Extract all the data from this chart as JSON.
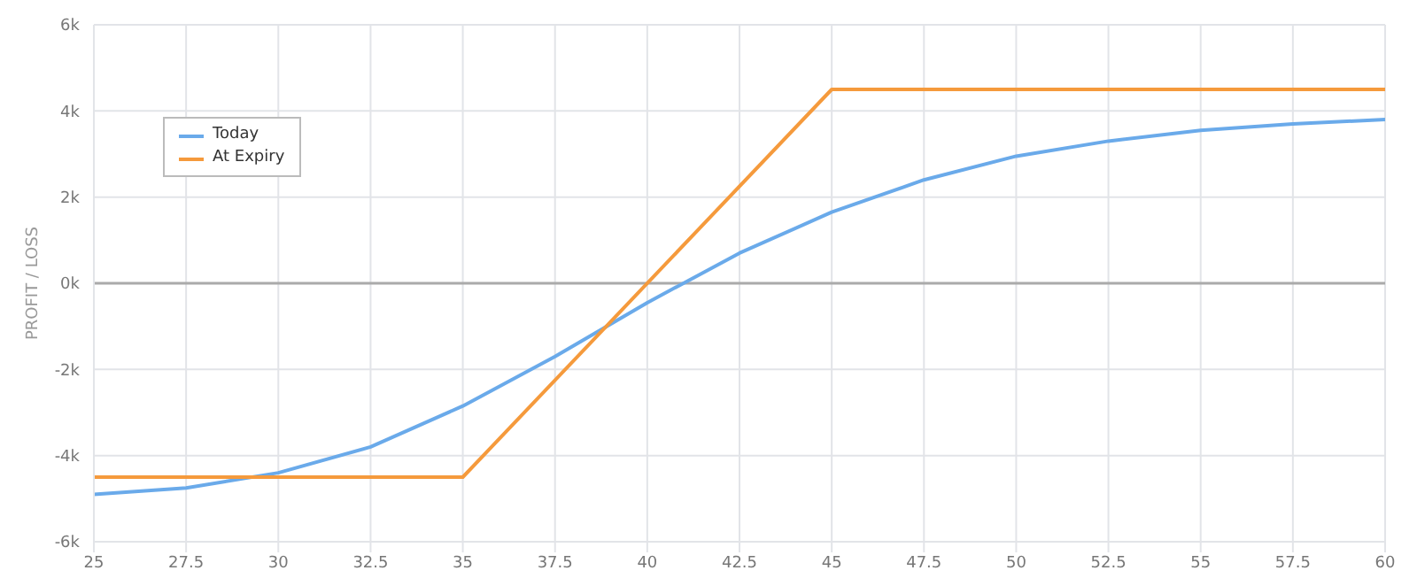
{
  "chart_data": {
    "type": "line",
    "ylabel": "PROFIT / LOSS",
    "xlim": [
      25,
      60
    ],
    "xticks": [
      25,
      27.5,
      30,
      32.5,
      35,
      37.5,
      40,
      42.5,
      45,
      47.5,
      50,
      52.5,
      55,
      57.5,
      60
    ],
    "ylim": [
      -6000,
      6000
    ],
    "yticks": [
      {
        "value": -6000,
        "label": "-6k"
      },
      {
        "value": -4000,
        "label": "-4k"
      },
      {
        "value": -2000,
        "label": "-2k"
      },
      {
        "value": 0,
        "label": "0k"
      },
      {
        "value": 2000,
        "label": "2k"
      },
      {
        "value": 4000,
        "label": "4k"
      },
      {
        "value": 6000,
        "label": "6k"
      }
    ],
    "grid": true,
    "legend": "top left",
    "marker": "none",
    "line_style": "solid",
    "ref_lines": [
      {
        "axis": "y",
        "value": 0,
        "color": "#aaaaaa"
      }
    ],
    "series": [
      {
        "name": "Today",
        "color": "#6aaaea",
        "x": [
          25,
          27.5,
          30,
          32.5,
          35,
          37.5,
          40,
          42.5,
          45,
          47.5,
          50,
          52.5,
          55,
          57.5,
          60
        ],
        "values": [
          -4900,
          -4750,
          -4400,
          -3800,
          -2850,
          -1700,
          -450,
          700,
          1650,
          2400,
          2950,
          3300,
          3550,
          3700,
          3800
        ]
      },
      {
        "name": "At Expiry",
        "color": "#f59a3c",
        "x": [
          25,
          35,
          45,
          60
        ],
        "values": [
          -4500,
          -4500,
          4500,
          4500
        ]
      }
    ]
  }
}
